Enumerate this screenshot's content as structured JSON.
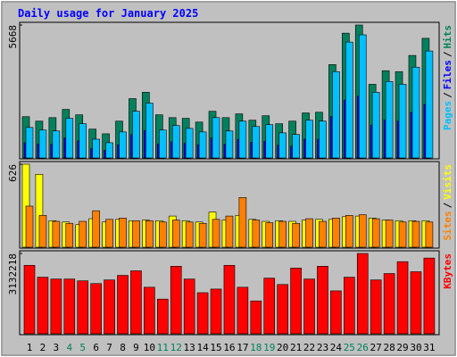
{
  "title": "Daily usage for January 2025",
  "separator": "/",
  "categories": [
    "1",
    "2",
    "3",
    "4",
    "5",
    "6",
    "7",
    "8",
    "9",
    "10",
    "11",
    "12",
    "13",
    "14",
    "15",
    "16",
    "17",
    "18",
    "19",
    "20",
    "21",
    "22",
    "23",
    "24",
    "25",
    "26",
    "27",
    "28",
    "29",
    "30",
    "31"
  ],
  "category_colors": [
    "#000000",
    "#000000",
    "#000000",
    "#00805c",
    "#00805c",
    "#000000",
    "#000000",
    "#000000",
    "#000000",
    "#000000",
    "#00805c",
    "#00805c",
    "#000000",
    "#000000",
    "#000000",
    "#000000",
    "#000000",
    "#00805c",
    "#00805c",
    "#000000",
    "#000000",
    "#000000",
    "#000000",
    "#000000",
    "#00805c",
    "#00805c",
    "#000000",
    "#000000",
    "#000000",
    "#000000",
    "#000000"
  ],
  "chart_data": [
    {
      "type": "bar",
      "ylim": [
        0,
        5668
      ],
      "yticks": [
        5668
      ],
      "series": [
        {
          "name": "Hits",
          "color": "#00805c",
          "values": [
            1760,
            1570,
            1720,
            2070,
            1840,
            1230,
            1030,
            1570,
            2530,
            2800,
            1840,
            1720,
            1690,
            1530,
            1990,
            1720,
            1880,
            1610,
            1800,
            1460,
            1570,
            1920,
            1950,
            3980,
            5320,
            5668,
            3140,
            3720,
            3680,
            4370,
            5100
          ]
        },
        {
          "name": "Files",
          "color": "#0000ff",
          "values": [
            650,
            600,
            580,
            850,
            730,
            400,
            330,
            560,
            1000,
            1170,
            600,
            690,
            630,
            560,
            860,
            580,
            790,
            670,
            710,
            540,
            500,
            800,
            790,
            1770,
            2470,
            2630,
            1400,
            1630,
            1570,
            1940,
            2280
          ]
        },
        {
          "name": "Pages",
          "color": "#00c0ff",
          "values": [
            1300,
            1190,
            1150,
            1690,
            1460,
            800,
            650,
            1110,
            1990,
            2340,
            1190,
            1380,
            1260,
            1110,
            1720,
            1150,
            1570,
            1340,
            1420,
            1070,
            1000,
            1610,
            1570,
            3680,
            4940,
            5250,
            2800,
            3260,
            3140,
            3870,
            4560
          ]
        }
      ]
    },
    {
      "type": "bar",
      "ylim": [
        0,
        626
      ],
      "yticks": [
        626
      ],
      "series": [
        {
          "name": "Visits",
          "color": "#ffff00",
          "values": [
            626,
            550,
            200,
            190,
            170,
            215,
            190,
            210,
            200,
            205,
            200,
            235,
            200,
            190,
            265,
            205,
            240,
            210,
            195,
            200,
            195,
            205,
            210,
            210,
            230,
            235,
            220,
            205,
            200,
            200,
            200
          ]
        },
        {
          "name": "Sites",
          "color": "#ff8000",
          "values": [
            310,
            240,
            195,
            180,
            195,
            275,
            210,
            220,
            200,
            200,
            190,
            205,
            190,
            180,
            210,
            235,
            375,
            205,
            185,
            195,
            180,
            215,
            195,
            220,
            240,
            245,
            215,
            205,
            190,
            195,
            190
          ]
        }
      ]
    },
    {
      "type": "bar",
      "ylim": [
        0,
        3132218
      ],
      "yticks": [
        3132218
      ],
      "series": [
        {
          "name": "KBytes",
          "color": "#ff0000",
          "values": [
            2670000,
            2207000,
            2136000,
            2136000,
            2065000,
            1958000,
            2100000,
            2278000,
            2456000,
            1815000,
            1352000,
            2634000,
            2136000,
            1602000,
            1744000,
            2670000,
            1815000,
            1281000,
            2171000,
            1922000,
            2563000,
            2136000,
            2634000,
            1673000,
            2207000,
            3132218,
            2100000,
            2349000,
            2812000,
            2420000,
            2954000
          ]
        }
      ]
    }
  ]
}
